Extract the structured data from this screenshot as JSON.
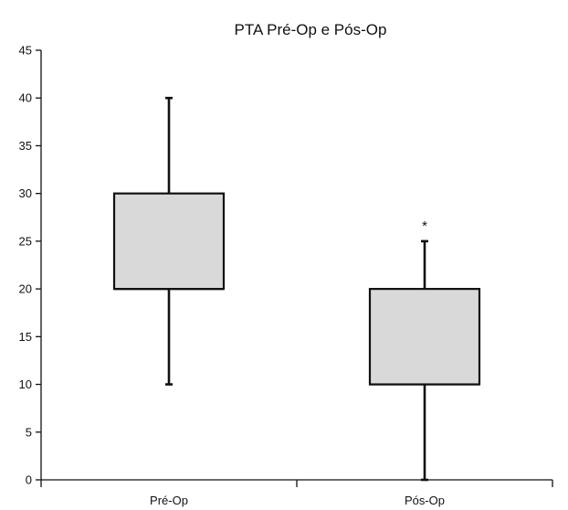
{
  "chart_data": {
    "type": "box",
    "title": "PTA Pré-Op e Pós-Op",
    "xlabel": "",
    "ylabel": "",
    "ylim": [
      0,
      45
    ],
    "yticks": [
      0,
      5,
      10,
      15,
      20,
      25,
      30,
      35,
      40,
      45
    ],
    "grid": false,
    "legend": "none",
    "categories": [
      "Pré-Op",
      "Pós-Op"
    ],
    "boxes": [
      {
        "category": "Pré-Op",
        "min": 10,
        "q1": 20,
        "median": 20,
        "q3": 30,
        "max": 40,
        "outliers": []
      },
      {
        "category": "Pós-Op",
        "min": 0,
        "q1": 10,
        "median": 10,
        "q3": 20,
        "max": 25,
        "outliers": [
          27
        ]
      }
    ],
    "outlier_marker": "*",
    "box_color": "#d9d9d9",
    "line_color": "#111111"
  }
}
